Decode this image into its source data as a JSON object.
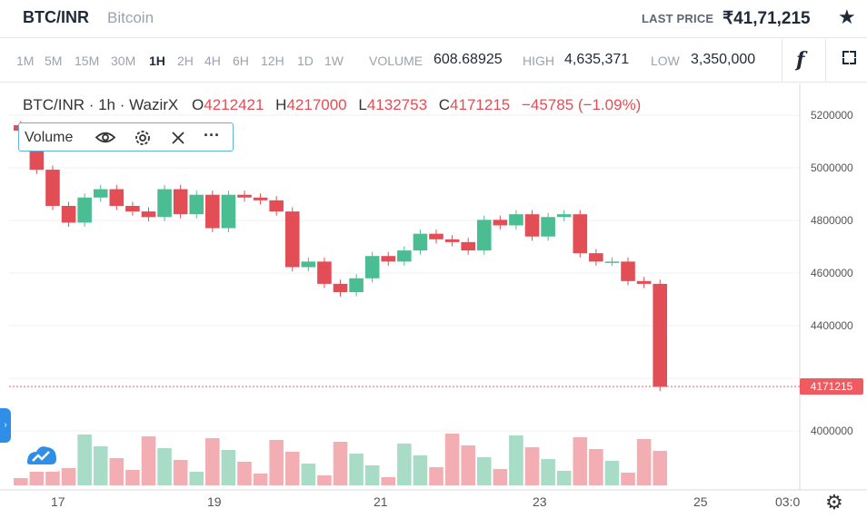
{
  "header": {
    "pair": "BTC/INR",
    "pair_name": "Bitcoin",
    "last_price_label": "LAST PRICE",
    "last_price": "₹41,71,215",
    "star_icon": "star-icon"
  },
  "toolbar": {
    "timeframes": [
      "1M",
      "5M",
      "15M",
      "30M",
      "1H",
      "2H",
      "4H",
      "6H",
      "12H",
      "1D",
      "1W"
    ],
    "active": "1H",
    "volume_label": "VOLUME",
    "volume_value": "608.68925",
    "high_label": "HIGH",
    "high_value": "4,635,371",
    "low_label": "LOW",
    "low_value": "3,350,000",
    "fx_label": "f",
    "fullscreen_icon": "fullscreen-icon"
  },
  "legend": {
    "symbol": "BTC/INR · 1h · WazirX",
    "o_label": "O",
    "o": "4212421",
    "h_label": "H",
    "h": "4217000",
    "l_label": "L",
    "l": "4132753",
    "c_label": "C",
    "c": "4171215",
    "change": "−45785 (−1.09%)"
  },
  "volume_indicator": {
    "label": "Volume",
    "icons": [
      "eye-icon",
      "settings-icon",
      "close-icon",
      "more-icon"
    ]
  },
  "colors": {
    "up": "#4bbd92",
    "down": "#e34d55",
    "accent": "#2f8ee8"
  },
  "chart_data": {
    "type": "candlestick",
    "price_ticks": [
      "5200000",
      "5000000",
      "4800000",
      "4600000",
      "4400000",
      "4000000"
    ],
    "last_price_label": "4171215",
    "x_ticks": [
      "17",
      "19",
      "21",
      "23",
      "25",
      "03:0"
    ],
    "ylim": [
      3800000,
      5250000
    ],
    "closes": [
      5090000,
      4950000,
      4820000,
      4760000,
      4850000,
      4880000,
      4820000,
      4800000,
      4780000,
      4880000,
      4790000,
      4860000,
      4740000,
      4860000,
      4850000,
      4840000,
      4800000,
      4600000,
      4620000,
      4540000,
      4510000,
      4560000,
      4640000,
      4620000,
      4660000,
      4720000,
      4700000,
      4690000,
      4660000,
      4770000,
      4750000,
      4790000,
      4710000,
      4780000,
      4790000,
      4650000,
      4620000,
      4620000,
      4550000,
      4540000,
      4170000
    ]
  },
  "settings_icon": "gear-icon"
}
